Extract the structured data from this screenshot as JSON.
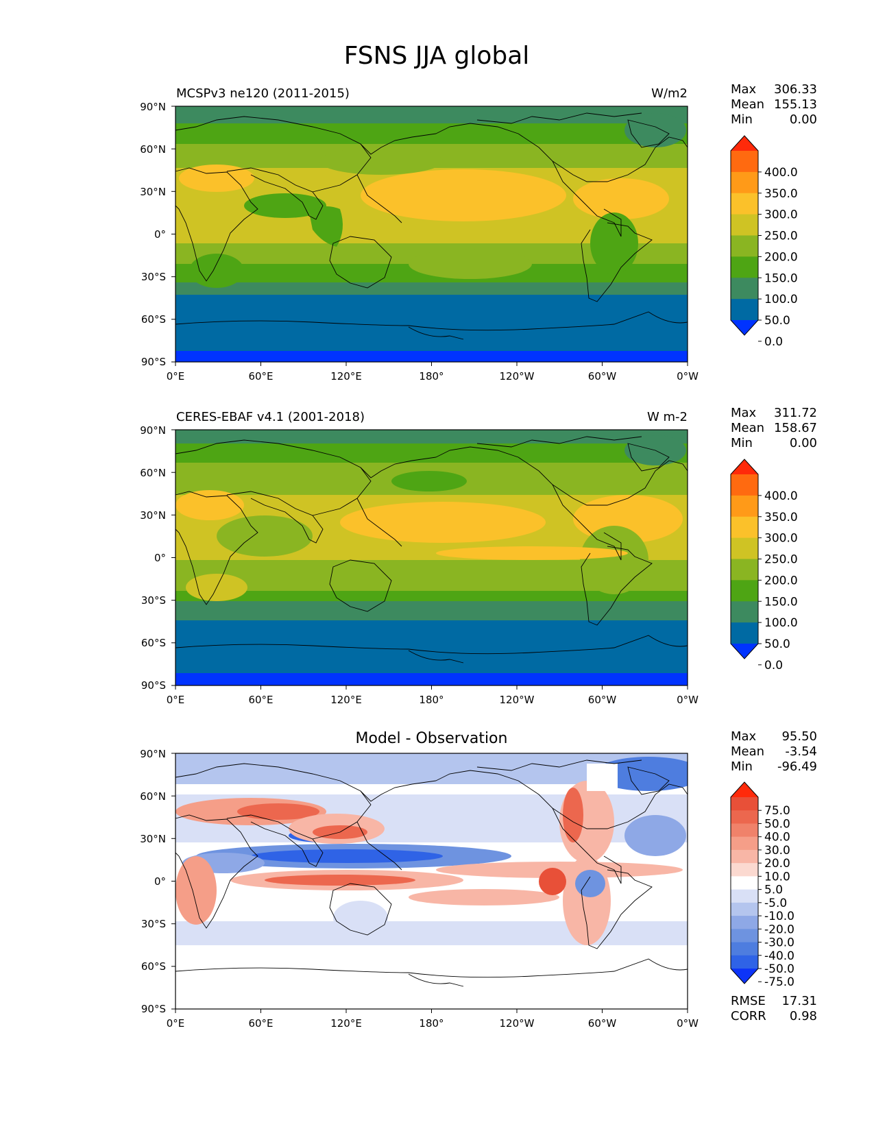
{
  "title": "FSNS JJA global",
  "lat_ticks": [
    "90°N",
    "60°N",
    "30°N",
    "0°",
    "30°S",
    "60°S",
    "90°S"
  ],
  "lon_ticks": [
    "0°E",
    "60°E",
    "120°E",
    "180°",
    "120°W",
    "60°W",
    "0°W"
  ],
  "colors": {
    "abs_levels": [
      "#0033ff",
      "#006aa3",
      "#3d8a5f",
      "#4ea514",
      "#8ab522",
      "#cfc324",
      "#fbc12a",
      "#ff9a18",
      "#ff6a10",
      "#ff2a0a"
    ],
    "diff_levels": [
      "#0d34f8",
      "#2f63e6",
      "#4e7ddf",
      "#6e93e0",
      "#8ea8e6",
      "#b4c5ee",
      "#d9e0f6",
      "#ffffff",
      "#fbd9d0",
      "#f8b6a6",
      "#f59e88",
      "#f0826a",
      "#ec674e",
      "#e85038",
      "#ff2a0a"
    ]
  },
  "panels": [
    {
      "id": "model",
      "left_label": "MCSPv3 ne120 (2011-2015)",
      "right_label": "W/m2",
      "center_label": "",
      "stats": [
        {
          "name": "Max",
          "value": "306.33"
        },
        {
          "name": "Mean",
          "value": "155.13"
        },
        {
          "name": "Min",
          "value": "0.00"
        }
      ],
      "colorbar_labels": [
        "400.0",
        "350.0",
        "300.0",
        "250.0",
        "200.0",
        "150.0",
        "100.0",
        "50.0",
        "0.0"
      ],
      "extra_stats": []
    },
    {
      "id": "obs",
      "left_label": "CERES-EBAF v4.1 (2001-2018)",
      "right_label": "W m-2",
      "center_label": "",
      "stats": [
        {
          "name": "Max",
          "value": "311.72"
        },
        {
          "name": "Mean",
          "value": "158.67"
        },
        {
          "name": "Min",
          "value": "0.00"
        }
      ],
      "colorbar_labels": [
        "400.0",
        "350.0",
        "300.0",
        "250.0",
        "200.0",
        "150.0",
        "100.0",
        "50.0",
        "0.0"
      ],
      "extra_stats": []
    },
    {
      "id": "diff",
      "left_label": "",
      "right_label": "",
      "center_label": "Model - Observation",
      "stats": [
        {
          "name": "Max",
          "value": "95.50"
        },
        {
          "name": "Mean",
          "value": "-3.54"
        },
        {
          "name": "Min",
          "value": "-96.49"
        }
      ],
      "colorbar_labels": [
        "75.0",
        "50.0",
        "40.0",
        "30.0",
        "20.0",
        "10.0",
        "5.0",
        "-5.0",
        "-10.0",
        "-20.0",
        "-30.0",
        "-40.0",
        "-50.0",
        "-75.0"
      ],
      "extra_stats": [
        {
          "name": "RMSE",
          "value": "17.31"
        },
        {
          "name": "CORR",
          "value": "0.98"
        }
      ]
    }
  ]
}
